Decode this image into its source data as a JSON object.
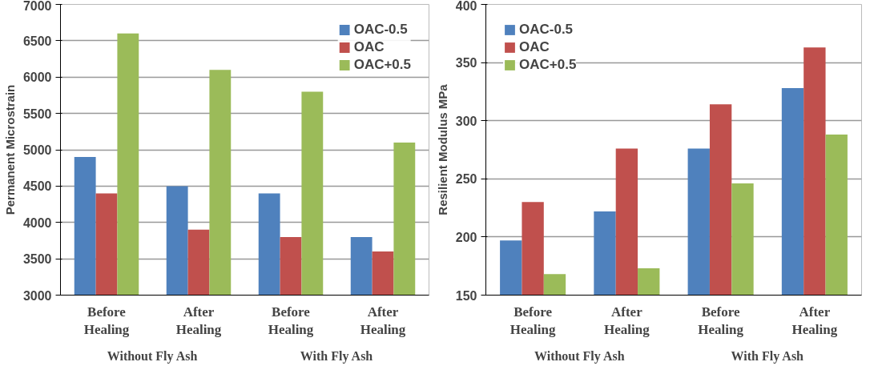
{
  "chart_data": [
    {
      "type": "bar",
      "ylabel": "Permanent Microstrain",
      "categories": [
        "Before Healing",
        "After Healing",
        "Before Healing",
        "After Healing"
      ],
      "annotations": [
        "Without Fly Ash",
        "With Fly Ash"
      ],
      "ylim": [
        3000,
        7000
      ],
      "yticks": [
        3000,
        3500,
        4000,
        4500,
        5000,
        5500,
        6000,
        6500,
        7000
      ],
      "grid": "y",
      "legend": "top right",
      "series": [
        {
          "name": "OAC-0.5",
          "color": "#4f81bd",
          "values": [
            4900,
            4500,
            4400,
            3800
          ]
        },
        {
          "name": "OAC",
          "color": "#c0504d",
          "values": [
            4400,
            3900,
            3800,
            3600
          ]
        },
        {
          "name": "OAC+0.5",
          "color": "#9bbb59",
          "values": [
            6600,
            6100,
            5800,
            5100
          ]
        }
      ]
    },
    {
      "type": "bar",
      "ylabel": "Resilient Modulus MPa",
      "categories": [
        "Before Healing",
        "After Healing",
        "Before Healing",
        "After Healing"
      ],
      "annotations": [
        "Without Fly Ash",
        "With Fly Ash"
      ],
      "ylim": [
        150,
        400
      ],
      "yticks": [
        150,
        200,
        250,
        300,
        350,
        400
      ],
      "grid": "y",
      "legend": "top left",
      "series": [
        {
          "name": "OAC-0.5",
          "color": "#4f81bd",
          "values": [
            197,
            222,
            276,
            328
          ]
        },
        {
          "name": "OAC",
          "color": "#c0504d",
          "values": [
            230,
            276,
            314,
            363
          ]
        },
        {
          "name": "OAC+0.5",
          "color": "#9bbb59",
          "values": [
            168,
            173,
            246,
            288
          ]
        }
      ]
    }
  ]
}
